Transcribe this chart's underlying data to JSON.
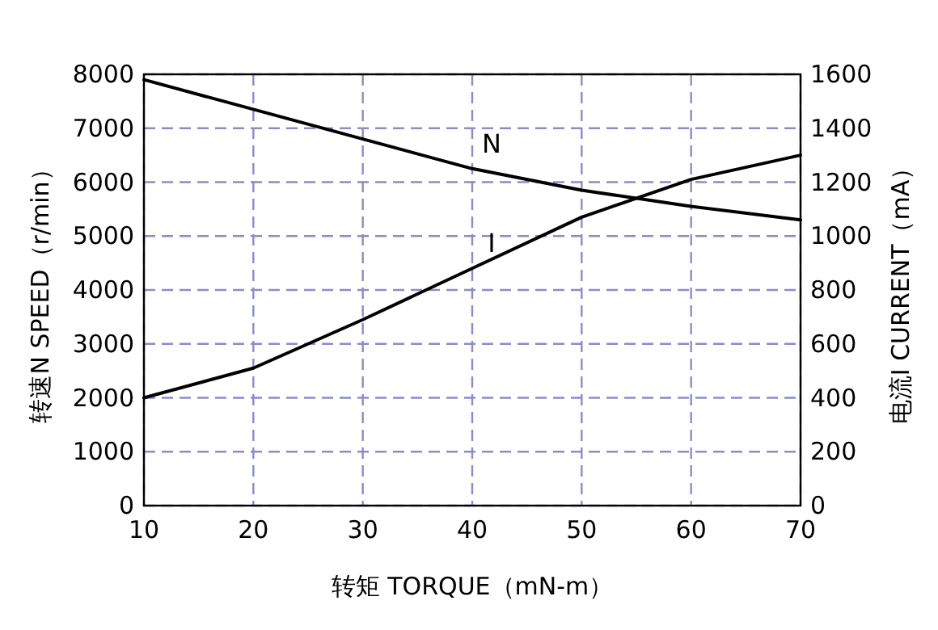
{
  "chart_data": {
    "type": "line",
    "xlabel": "转矩 TORQUE（mN-m）",
    "ylabel": "转速N SPEED（r/min）",
    "y2label": "电流I CURRENT（mA）",
    "x": [
      10,
      20,
      30,
      40,
      50,
      60,
      70
    ],
    "series": [
      {
        "name": "N",
        "color": "#000000",
        "values": [
          7900,
          7350,
          6800,
          6250,
          5850,
          5550,
          5300
        ]
      },
      {
        "name": "I",
        "color": "#000000",
        "axis": "y2",
        "values": [
          400,
          510,
          690,
          880,
          1070,
          1210,
          1300
        ]
      }
    ],
    "xlim": [
      10,
      70
    ],
    "xticks": [
      10,
      20,
      30,
      40,
      50,
      60,
      70
    ],
    "ylim": [
      0,
      8000
    ],
    "yticks": [
      0,
      1000,
      2000,
      3000,
      4000,
      5000,
      6000,
      7000,
      8000
    ],
    "y2lim": [
      0,
      1600
    ],
    "y2ticks": [
      0,
      200,
      400,
      600,
      800,
      1000,
      1200,
      1400,
      1600
    ],
    "grid": true,
    "marker": "none",
    "line_style": "solid"
  }
}
